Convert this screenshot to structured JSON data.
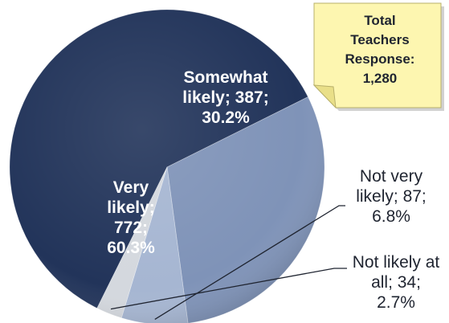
{
  "chart_data": {
    "type": "pie",
    "total_label": "Total Teachers Response: 1,280",
    "total_label_lines": [
      "Total",
      "Teachers",
      "Response:",
      "1,280"
    ],
    "slices": [
      {
        "name": "Very likely",
        "value": 772,
        "percent": 60.3,
        "color": "#22345a",
        "label_lines": [
          "Very",
          "likely;",
          "772;",
          "60.3%"
        ]
      },
      {
        "name": "Somewhat likely",
        "value": 387,
        "percent": 30.2,
        "color": "#7f93b8",
        "label_lines": [
          "Somewhat",
          "likely; 387;",
          "30.2%"
        ]
      },
      {
        "name": "Not very likely",
        "value": 87,
        "percent": 6.8,
        "color": "#a6b6d2",
        "label_lines": [
          "Not very",
          "likely; 87;",
          "6.8%"
        ]
      },
      {
        "name": "Not likely at all",
        "value": 34,
        "percent": 2.7,
        "color": "#d4d8de",
        "label_lines": [
          "Not likely at",
          "all; 34;",
          "2.7%"
        ]
      }
    ],
    "note_color": "#fdf6b0"
  }
}
